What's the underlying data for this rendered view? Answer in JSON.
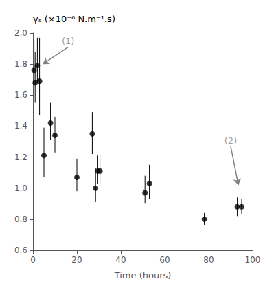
{
  "chart_data": {
    "type": "scatter",
    "x": [
      0.5,
      1.0,
      2.0,
      3.0,
      5.0,
      8.0,
      10.0,
      20.0,
      27.0,
      28.5,
      29.5,
      30.5,
      51.0,
      53.0,
      78.0,
      93.0,
      95.0
    ],
    "values": [
      1.76,
      1.68,
      1.79,
      1.69,
      1.21,
      1.42,
      1.34,
      1.07,
      1.35,
      1.0,
      1.11,
      1.11,
      0.97,
      1.03,
      0.8,
      0.88,
      0.88
    ],
    "yerr_lo": [
      0.09,
      0.13,
      0.1,
      0.22,
      0.14,
      0.11,
      0.11,
      0.09,
      0.13,
      0.09,
      0.08,
      0.08,
      0.07,
      0.1,
      0.04,
      0.06,
      0.05
    ],
    "yerr_hi": [
      0.2,
      0.2,
      0.18,
      0.28,
      0.18,
      0.13,
      0.12,
      0.12,
      0.14,
      0.13,
      0.1,
      0.1,
      0.11,
      0.12,
      0.04,
      0.06,
      0.05
    ],
    "color": "black",
    "marker": "circle",
    "xlabel": "Time (hours)",
    "ylabel": "γₛ (×10⁻⁶ N.m⁻¹.s)",
    "xlim": [
      0,
      100
    ],
    "xticks": [
      0,
      20,
      40,
      60,
      80,
      100
    ],
    "ylim": [
      0.6,
      2.0
    ],
    "yticks": [
      0.6,
      0.8,
      {
        "value": 1.0,
        "label": "1.0"
      },
      1.2,
      1.4,
      1.6,
      1.8,
      {
        "value": 2.0,
        "label": "2.0"
      }
    ],
    "grid": false,
    "annotations": [
      {
        "text": "(1)",
        "xy": [
          4.5,
          1.8
        ],
        "xytext": [
          16,
          1.91
        ]
      },
      {
        "text": "(2)",
        "xy": [
          93.5,
          1.02
        ],
        "xytext": [
          90,
          1.27
        ]
      }
    ]
  }
}
